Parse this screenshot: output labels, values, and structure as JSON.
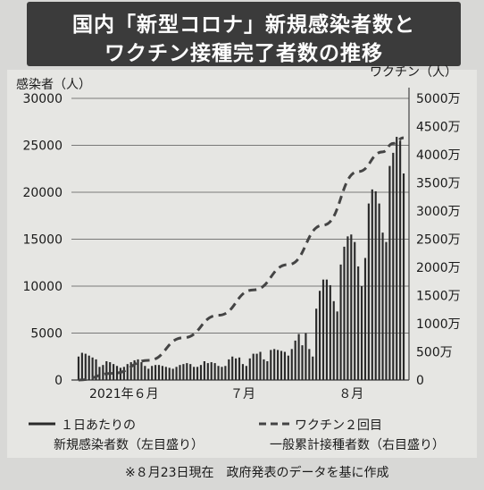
{
  "title": {
    "line1": "国内「新型コロナ」新規感染者数と",
    "line2": "ワクチン接種完了者数の推移"
  },
  "chart_data": {
    "type": "bar",
    "left_axis": {
      "label": "感染者（人）",
      "ylim": [
        0,
        30000
      ],
      "ticks": [
        "30000",
        "25000",
        "20000",
        "15000",
        "10000",
        "5000",
        "0"
      ],
      "tick_values": [
        30000,
        25000,
        20000,
        15000,
        10000,
        5000,
        0
      ]
    },
    "right_axis": {
      "label": "ワクチン（人）",
      "ylim": [
        0,
        50000000
      ],
      "ticks": [
        "5000万",
        "4500万",
        "4000万",
        "3500万",
        "3000万",
        "2500万",
        "2000万",
        "1500万",
        "1000万",
        "500万",
        "0"
      ],
      "tick_values": [
        50000000,
        45000000,
        40000000,
        35000000,
        30000000,
        25000000,
        20000000,
        15000000,
        10000000,
        5000000,
        0
      ]
    },
    "x_axis": {
      "labels": [
        "2021年６月",
        "７月",
        "８月"
      ],
      "label_day_index": [
        13,
        47,
        78
      ]
    },
    "series": [
      {
        "name": "１日あたりの新規感染者数（左目盛り）",
        "type": "bar",
        "values": [
          2500,
          2900,
          2800,
          2600,
          2400,
          2200,
          1400,
          1600,
          2000,
          1900,
          1700,
          1500,
          1300,
          1400,
          1700,
          1900,
          2100,
          2200,
          1900,
          1500,
          1200,
          1500,
          1600,
          1600,
          1500,
          1400,
          1300,
          1200,
          1400,
          1600,
          1700,
          1800,
          1700,
          1400,
          1400,
          1600,
          2000,
          1800,
          1900,
          1800,
          1500,
          1400,
          1500,
          2200,
          2500,
          2300,
          2400,
          1700,
          1500,
          2300,
          2800,
          2800,
          3000,
          2200,
          2000,
          3200,
          3300,
          3200,
          3100,
          3000,
          2600,
          3300,
          4200,
          4900,
          3700,
          5000,
          3300,
          2500,
          7600,
          9500,
          10700,
          10700,
          10100,
          8400,
          7300,
          12300,
          14200,
          15300,
          15500,
          14700,
          12100,
          10000,
          13000,
          18800,
          20300,
          20100,
          18800,
          15700,
          14700,
          22800,
          24200,
          25900,
          25500,
          22000
        ],
        "color": "#2a2a2a"
      },
      {
        "name": "ワクチン２回目一般累計接種者数（右目盛り）",
        "type": "line",
        "style": "dashed",
        "x_index": [
          0,
          10,
          20,
          30,
          40,
          50,
          60,
          70,
          80,
          87,
          90,
          93
        ],
        "values": [
          0,
          1200000,
          3500000,
          7500000,
          11500000,
          16000000,
          20500000,
          27500000,
          37000000,
          40500000,
          42000000,
          43000000
        ],
        "color": "#444444"
      }
    ],
    "legend": {
      "bar_line1": "１日あたりの",
      "bar_line2": "新規感染者数（左目盛り）",
      "line_line1": "ワクチン２回目",
      "line_line2": "一般累計接種者数（右目盛り）"
    }
  },
  "note": "※８月23日現在　政府発表のデータを基に作成"
}
